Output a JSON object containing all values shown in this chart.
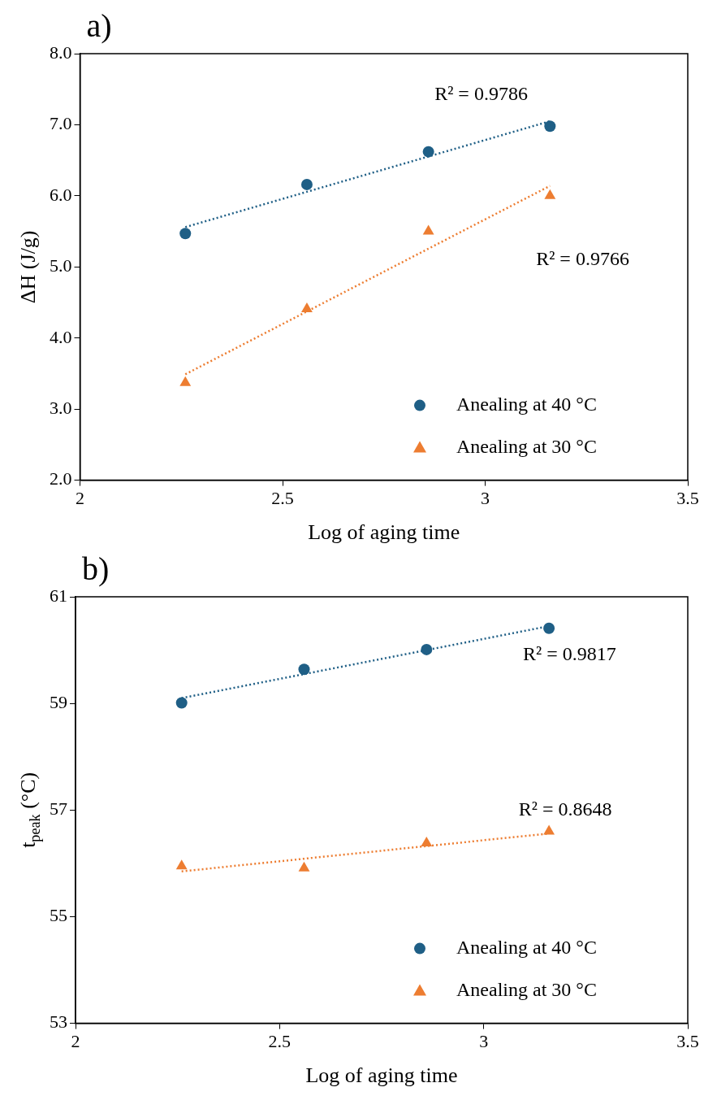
{
  "chart_data": [
    {
      "type": "scatter",
      "title": "a)",
      "xlabel": "Log of aging time",
      "ylabel": "ΔH (J/g)",
      "xlim": [
        2,
        3.5
      ],
      "xticks": [
        2,
        2.5,
        3,
        3.5
      ],
      "ylim": [
        2,
        8
      ],
      "yticks": [
        {
          "value": 2,
          "label": "2.0"
        },
        {
          "value": 3,
          "label": "3.0"
        },
        {
          "value": 4,
          "label": "4.0"
        },
        {
          "value": 5,
          "label": "5.0"
        },
        {
          "value": 6,
          "label": "6.0"
        },
        {
          "value": 7,
          "label": "7.0"
        },
        {
          "value": 8,
          "label": "8.0"
        }
      ],
      "grid": false,
      "legend": "bottom right",
      "series": [
        {
          "name": "Anealing at 40 °C",
          "color": "#1f5f86",
          "marker": "circle",
          "x": [
            2.26,
            2.56,
            2.86,
            3.16
          ],
          "values": [
            5.47,
            6.16,
            6.62,
            6.98
          ]
        },
        {
          "name": "Anealing at 30 °C",
          "color": "#ed7d31",
          "marker": "triangle",
          "x": [
            2.26,
            2.56,
            2.86,
            3.16
          ],
          "values": [
            3.37,
            4.41,
            5.5,
            6.0
          ]
        },
        {
          "type": "line",
          "color": "#1f5f86",
          "line_style": "dotted",
          "marker": "none",
          "x": [
            2.26,
            3.16
          ],
          "values": [
            5.56,
            7.05
          ]
        },
        {
          "type": "line",
          "color": "#ed7d31",
          "line_style": "dotted",
          "marker": "none",
          "x": [
            2.26,
            3.16
          ],
          "values": [
            3.49,
            6.14
          ]
        }
      ],
      "annotations": [
        "R² = 0.9786",
        "R² = 0.9766"
      ]
    },
    {
      "type": "scatter",
      "title": "b)",
      "xlabel": "Log of aging time",
      "ylabel": "t$_{peak}$ (°C)",
      "xlim": [
        2,
        3.5
      ],
      "xticks": [
        2,
        2.5,
        3,
        3.5
      ],
      "ylim": [
        53,
        61
      ],
      "yticks": [
        53,
        55,
        57,
        59,
        61
      ],
      "grid": false,
      "legend": "bottom right",
      "series": [
        {
          "name": "Anealing at 40 °C",
          "color": "#1f5f86",
          "marker": "circle",
          "x": [
            2.26,
            2.56,
            2.86,
            3.16
          ],
          "values": [
            59.01,
            59.64,
            60.01,
            60.41
          ]
        },
        {
          "name": "Anealing at 30 °C",
          "color": "#ed7d31",
          "marker": "triangle",
          "x": [
            2.26,
            2.56,
            2.86,
            3.16
          ],
          "values": [
            55.95,
            55.91,
            56.38,
            56.6
          ]
        },
        {
          "type": "line",
          "color": "#1f5f86",
          "line_style": "dotted",
          "marker": "none",
          "x": [
            2.26,
            3.16
          ],
          "values": [
            59.1,
            60.45
          ]
        },
        {
          "type": "line",
          "color": "#ed7d31",
          "line_style": "dotted",
          "marker": "none",
          "x": [
            2.26,
            3.16
          ],
          "values": [
            55.85,
            56.56
          ]
        }
      ],
      "annotations": [
        "R² = 0.9817",
        "R² = 0.8648"
      ]
    }
  ]
}
